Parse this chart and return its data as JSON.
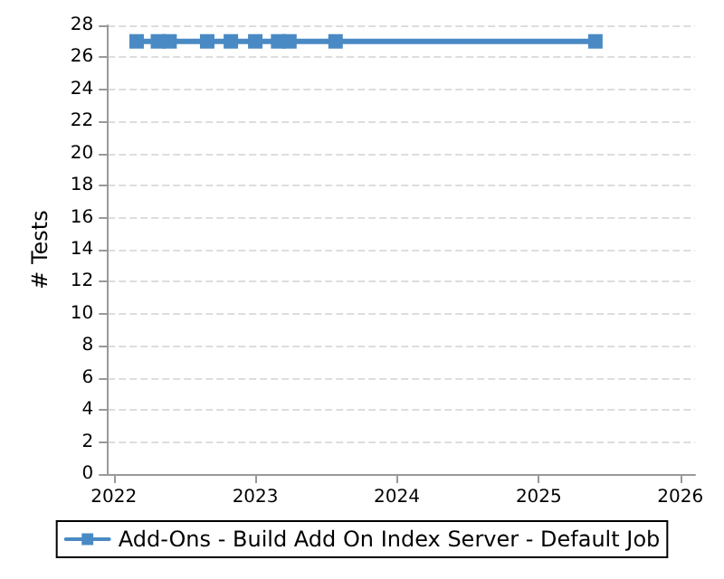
{
  "chart_data": {
    "type": "line",
    "ylabel": "# Tests",
    "x": [
      "2022-03-01",
      "2022-04-25",
      "2022-05-25",
      "2022-08-30",
      "2022-10-30",
      "2023-01-01",
      "2023-03-01",
      "2023-03-30",
      "2023-07-27",
      "2025-05-27"
    ],
    "series": [
      {
        "name": "Add-Ons - Build Add On Index Server - Default Job",
        "color": "#4a8ac4",
        "values": [
          27,
          27,
          27,
          27,
          27,
          27,
          27,
          27,
          27,
          27
        ]
      }
    ],
    "xlim": [
      "2021-12-17",
      "2026-02-08"
    ],
    "xticks": [
      "2022",
      "2023",
      "2024",
      "2025",
      "2026"
    ],
    "ylim": [
      0,
      28
    ],
    "yticks": [
      0,
      2,
      4,
      6,
      8,
      10,
      12,
      14,
      16,
      18,
      20,
      22,
      24,
      26,
      28
    ],
    "grid": "y",
    "legend": "bottom",
    "marker": "square",
    "line_style": "solid"
  }
}
